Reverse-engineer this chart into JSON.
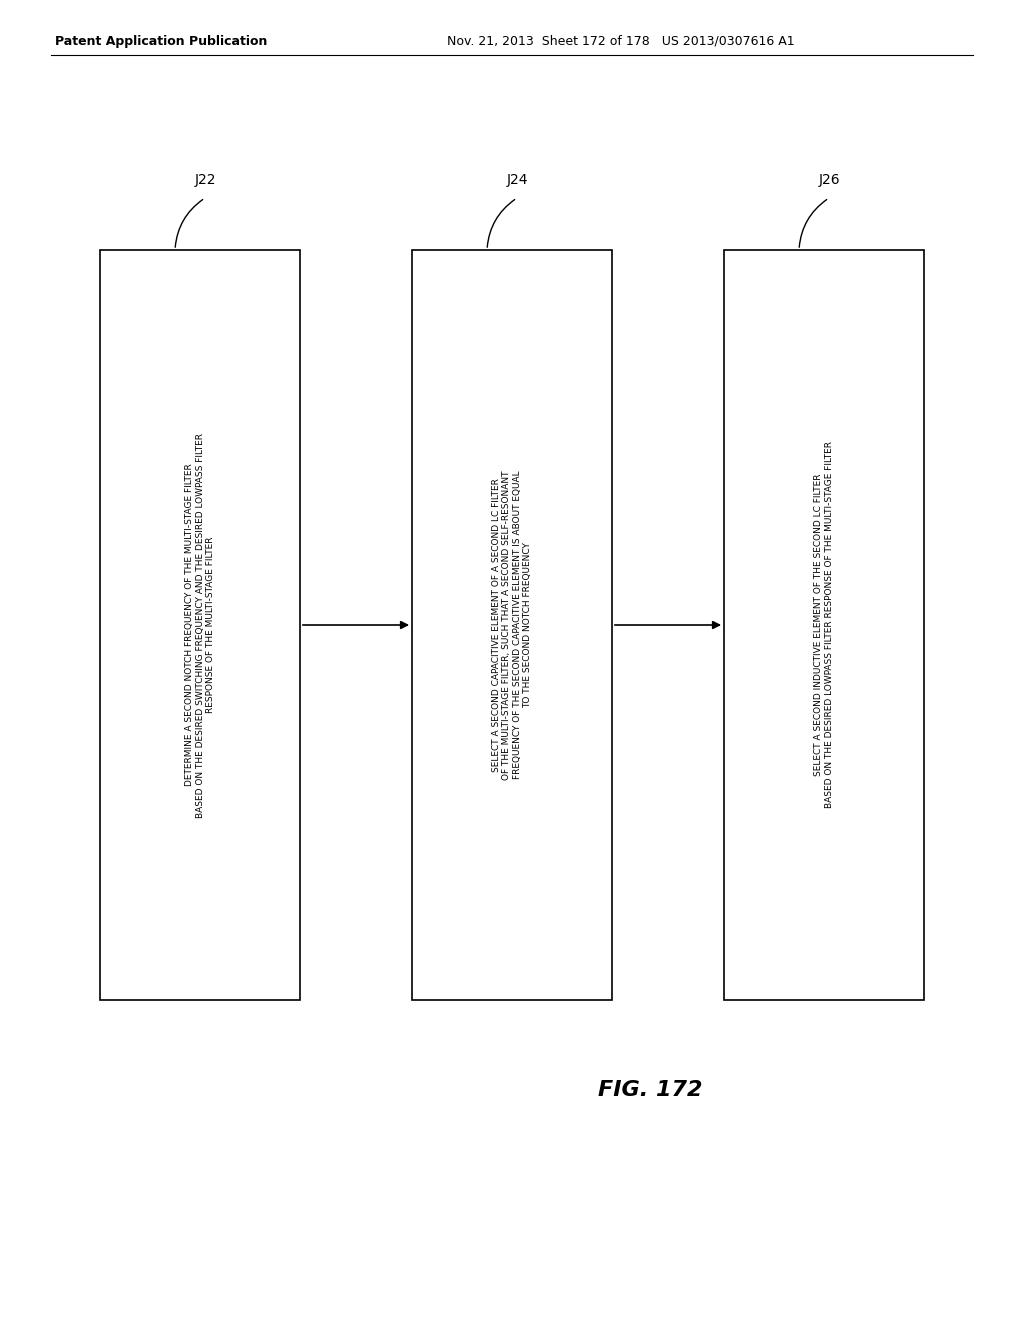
{
  "background_color": "#ffffff",
  "header_text": "Patent Application Publication    Nov. 21, 2013  Sheet 172 of 178   US 2013/0307616 A1",
  "header_bold_end": "Patent Application Publication",
  "fig_label": "FIG. 172",
  "boxes": [
    {
      "label": "J22",
      "lines": [
        "DETERMINE A SECOND NOTCH FREQUENCY OF THE MULTI-STAGE FILTER",
        "BASED ON THE DESIRED SWITCHING FREQUENCY AND THE DESIRED LOWPASS FILTER",
        "RESPONSE OF THE MULTI-STAGE FILTER"
      ]
    },
    {
      "label": "J24",
      "lines": [
        "SELECT A SECOND CAPACITIVE ELEMENT OF A SECOND LC FILTER",
        "OF THE MULTI-STAGE FILTER, SUCH THAT A SECOND SELF-RESONANT",
        "FREQUENCY OF THE SECOND CAPACITIVE ELEMENT IS ABOUT EQUAL",
        "TO THE SECOND NOTCH FREQUENCY"
      ]
    },
    {
      "label": "J26",
      "lines": [
        "SELECT A SECOND INDUCTIVE ELEMENT OF THE SECOND LC FILTER",
        "BASED ON THE DESIRED LOWPASS FILTER RESPONSE OF THE MULTI-STAGE FILTER"
      ]
    }
  ],
  "box_color": "#ffffff",
  "box_edge_color": "#000000",
  "text_color": "#000000",
  "arrow_color": "#000000"
}
